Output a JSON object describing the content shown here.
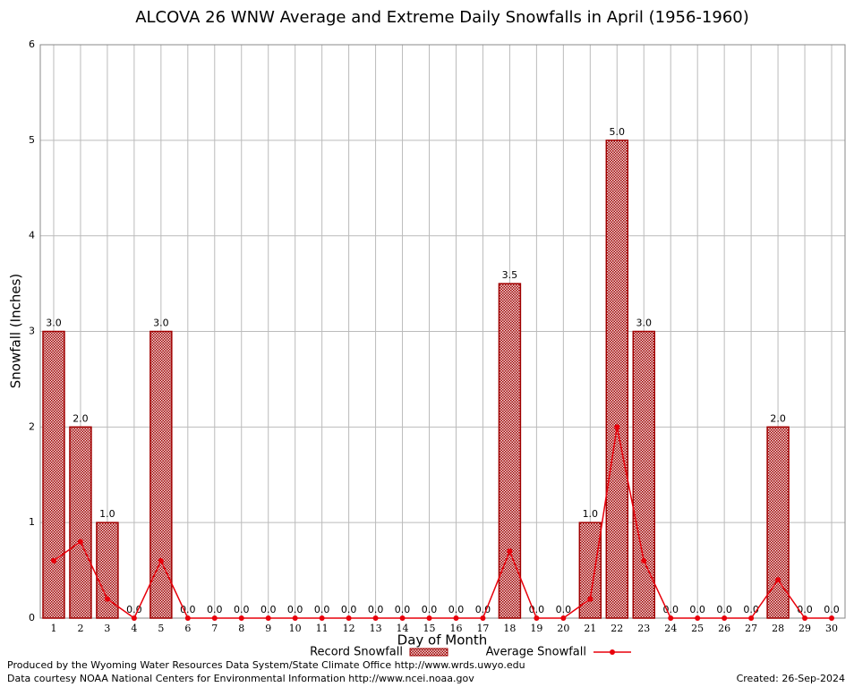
{
  "chart_data": {
    "type": "bar_line",
    "title": "ALCOVA 26 WNW Average and Extreme Daily Snowfalls in April (1956-1960)",
    "x_label": "Day of Month",
    "y_label": "Snowfall (Inches)",
    "categories": [
      "1",
      "2",
      "3",
      "4",
      "5",
      "6",
      "7",
      "8",
      "9",
      "10",
      "11",
      "12",
      "13",
      "14",
      "15",
      "16",
      "17",
      "18",
      "19",
      "20",
      "21",
      "22",
      "23",
      "24",
      "25",
      "26",
      "27",
      "28",
      "29",
      "30"
    ],
    "series": [
      {
        "name": "Record Snowfall",
        "type": "bar",
        "color": "#a00000",
        "values": [
          3.0,
          2.0,
          1.0,
          0,
          3.0,
          0,
          0,
          0,
          0,
          0,
          0,
          0,
          0,
          0,
          0,
          0,
          0,
          3.5,
          0,
          0,
          1.0,
          5.0,
          3.0,
          0,
          0,
          0,
          0,
          2.0,
          0,
          0
        ],
        "value_labels": [
          "3.0",
          "2.0",
          "1.0",
          "0.0",
          "3.0",
          "0.0",
          "0.0",
          "0.0",
          "0.0",
          "0.0",
          "0.0",
          "0.0",
          "0.0",
          "0.0",
          "0.0",
          "0.0",
          "0.0",
          "3.5",
          "0.0",
          "0.0",
          "1.0",
          "5.0",
          "3.0",
          "0.0",
          "0.0",
          "0.0",
          "0.0",
          "2.0",
          "0.0",
          "0.0"
        ]
      },
      {
        "name": "Average Snowfall",
        "type": "line",
        "color": "#e8000b",
        "values": [
          0.6,
          0.8,
          0.2,
          0,
          0.6,
          0,
          0,
          0,
          0,
          0,
          0,
          0,
          0,
          0,
          0,
          0,
          0,
          0.7,
          0,
          0,
          0.2,
          2.0,
          0.6,
          0,
          0,
          0,
          0,
          0.4,
          0,
          0
        ]
      }
    ],
    "ylim": [
      0,
      6
    ],
    "yticks": [
      0,
      1,
      2,
      3,
      4,
      5,
      6
    ],
    "grid": true
  },
  "footer": {
    "produced": "Produced by the Wyoming Water Resources Data System/State Climate Office http://www.wrds.uwyo.edu",
    "courtesy": "Data courtesy NOAA National Centers for Environmental Information http://www.ncei.noaa.gov",
    "created": "Created:  26-Sep-2024"
  }
}
